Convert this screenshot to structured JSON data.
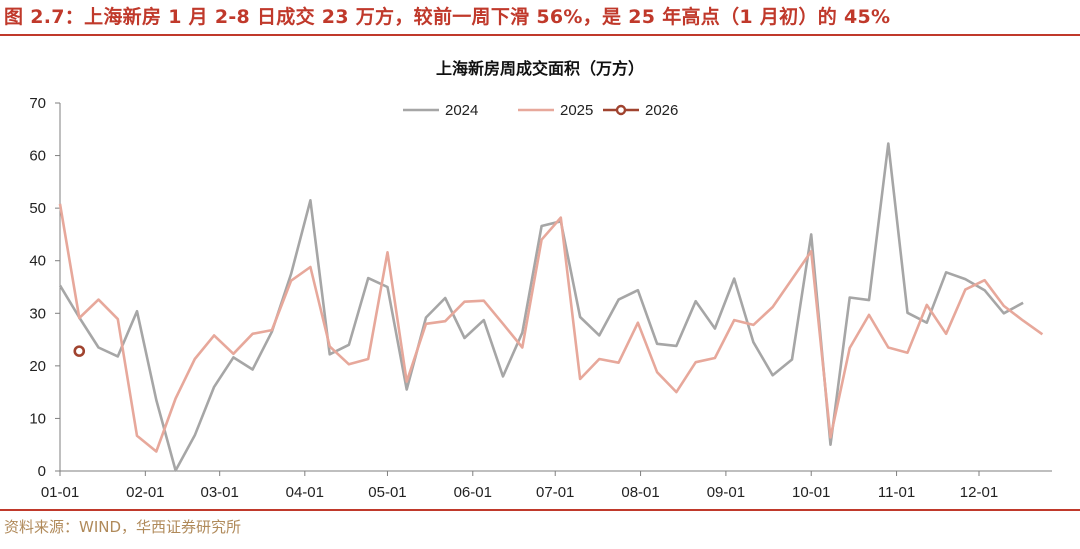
{
  "figure": {
    "title": "图 2.7：上海新房 1 月 2-8 日成交 23 万方，较前一周下滑 56%，是 25 年高点（1 月初）的 45%",
    "source": "资料来源：WIND，华西证券研究所"
  },
  "chart_data": {
    "type": "line",
    "title": "上海新房周成交面积（万方）",
    "xlabel": "",
    "ylabel": "",
    "ylim": [
      0,
      70
    ],
    "yticks": [
      0,
      10,
      20,
      30,
      40,
      50,
      60,
      70
    ],
    "xticks": [
      "01-01",
      "02-01",
      "03-01",
      "04-01",
      "05-01",
      "06-01",
      "07-01",
      "08-01",
      "09-01",
      "10-01",
      "11-01",
      "12-01"
    ],
    "xtick_weeks": [
      0,
      4.43,
      8.29,
      12.71,
      17.0,
      21.43,
      25.71,
      30.14,
      34.57,
      39.0,
      43.43,
      47.71
    ],
    "grid": false,
    "legend_position": "top-center",
    "series": [
      {
        "name": "2024",
        "color": "#a6a6a6",
        "week": [
          0,
          1,
          2,
          3,
          4,
          5,
          6,
          7,
          8,
          9,
          10,
          11,
          12,
          13,
          14,
          15,
          16,
          17,
          18,
          19,
          20,
          21,
          22,
          23,
          24,
          25,
          26,
          27,
          28,
          29,
          30,
          31,
          32,
          33,
          34,
          35,
          36,
          37,
          38,
          39,
          40,
          41,
          42,
          43,
          44,
          45,
          46,
          47,
          48,
          49,
          50
        ],
        "values": [
          35.3,
          29.2,
          23.5,
          21.8,
          30.4,
          13.5,
          0.1,
          6.8,
          16.0,
          21.6,
          19.3,
          26.5,
          37.5,
          51.5,
          22.2,
          24.0,
          36.7,
          35.0,
          15.5,
          29.2,
          32.9,
          25.3,
          28.7,
          18.0,
          26.3,
          46.6,
          47.5,
          29.3,
          25.8,
          32.6,
          34.4,
          24.2,
          23.8,
          32.3,
          27.1,
          36.6,
          24.5,
          18.2,
          21.2,
          45.0,
          5.0,
          33.0,
          32.5,
          62.3,
          30.1,
          28.2,
          37.8,
          36.5,
          34.4,
          30.0,
          32.0
        ]
      },
      {
        "name": "2025",
        "color": "#e7a89b",
        "week": [
          0,
          1,
          2,
          3,
          4,
          5,
          6,
          7,
          8,
          9,
          10,
          11,
          12,
          13,
          14,
          15,
          16,
          17,
          18,
          19,
          20,
          21,
          22,
          23,
          24,
          25,
          26,
          27,
          28,
          29,
          30,
          31,
          32,
          33,
          34,
          35,
          36,
          37,
          38,
          39,
          40,
          41,
          42,
          43,
          44,
          45,
          46,
          47,
          48,
          49,
          50,
          51
        ],
        "values": [
          50.8,
          29.1,
          32.6,
          28.9,
          6.7,
          3.7,
          13.8,
          21.3,
          25.8,
          22.3,
          26.1,
          26.8,
          36.2,
          38.8,
          23.7,
          20.3,
          21.3,
          41.6,
          17.0,
          28.0,
          28.5,
          32.2,
          32.4,
          28.0,
          23.5,
          44.0,
          48.2,
          17.5,
          21.3,
          20.6,
          28.2,
          18.8,
          15.0,
          20.7,
          21.5,
          28.7,
          27.8,
          31.2,
          36.5,
          41.8,
          6.4,
          23.4,
          29.7,
          23.5,
          22.5,
          31.6,
          26.1,
          34.5,
          36.3,
          31.4,
          28.6,
          26.0
        ]
      },
      {
        "name": "2026",
        "color": "#a0432f",
        "week": [
          1
        ],
        "values": [
          22.8
        ]
      }
    ]
  }
}
